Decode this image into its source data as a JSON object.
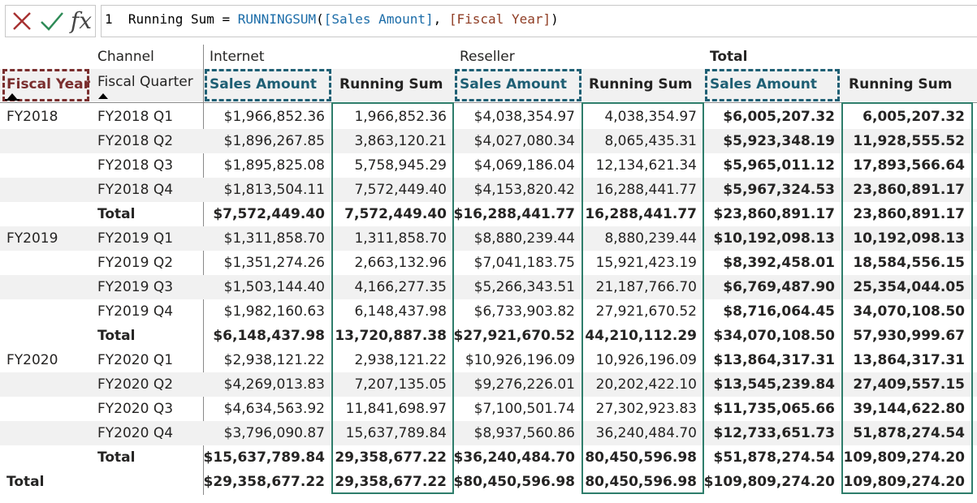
{
  "formula": {
    "line_number": "1",
    "measure_name": "Running Sum",
    "equals": " = ",
    "function": "RUNNINGSUM",
    "open_paren": "(",
    "arg1": "[Sales Amount]",
    "comma": ", ",
    "arg2": "[Fiscal Year]",
    "close_paren": ")",
    "icons": [
      "cancel-x-icon",
      "commit-check-icon",
      "fx-icon"
    ],
    "colors": {
      "cancel": "#a83232",
      "commit": "#2e8b57",
      "function": "#1b6ca8",
      "column_ref": "#1b6ca8",
      "column_ref_alt": "#8f3d24"
    }
  },
  "matrix": {
    "row_header_label": "Channel",
    "fiscal_year_header": "Fiscal Year",
    "fiscal_quarter_header": "Fiscal Quarter",
    "channels": [
      "Internet",
      "Reseller",
      "Total"
    ],
    "value_headers": [
      "Sales Amount",
      "Running Sum",
      "Sales Amount",
      "Running Sum",
      "Sales Amount",
      "Running Sum"
    ],
    "rows": [
      {
        "year": "FY2018",
        "quarter": "FY2018 Q1",
        "values": [
          "$1,966,852.36",
          "1,966,852.36",
          "$4,038,354.97",
          "4,038,354.97",
          "$6,005,207.32",
          "6,005,207.32"
        ]
      },
      {
        "year": "",
        "quarter": "FY2018 Q2",
        "values": [
          "$1,896,267.85",
          "3,863,120.21",
          "$4,027,080.34",
          "8,065,435.31",
          "$5,923,348.19",
          "11,928,555.52"
        ]
      },
      {
        "year": "",
        "quarter": "FY2018 Q3",
        "values": [
          "$1,895,825.08",
          "5,758,945.29",
          "$4,069,186.04",
          "12,134,621.34",
          "$5,965,011.12",
          "17,893,566.64"
        ]
      },
      {
        "year": "",
        "quarter": "FY2018 Q4",
        "values": [
          "$1,813,504.11",
          "7,572,449.40",
          "$4,153,820.42",
          "16,288,441.77",
          "$5,967,324.53",
          "23,860,891.17"
        ]
      },
      {
        "year": "",
        "quarter": "Total",
        "values": [
          "$7,572,449.40",
          "7,572,449.40",
          "$16,288,441.77",
          "16,288,441.77",
          "$23,860,891.17",
          "23,860,891.17"
        ]
      },
      {
        "year": "FY2019",
        "quarter": "FY2019 Q1",
        "values": [
          "$1,311,858.70",
          "1,311,858.70",
          "$8,880,239.44",
          "8,880,239.44",
          "$10,192,098.13",
          "10,192,098.13"
        ]
      },
      {
        "year": "",
        "quarter": "FY2019 Q2",
        "values": [
          "$1,351,274.26",
          "2,663,132.96",
          "$7,041,183.75",
          "15,921,423.19",
          "$8,392,458.01",
          "18,584,556.15"
        ]
      },
      {
        "year": "",
        "quarter": "FY2019 Q3",
        "values": [
          "$1,503,144.40",
          "4,166,277.35",
          "$5,266,343.51",
          "21,187,766.70",
          "$6,769,487.90",
          "25,354,044.05"
        ]
      },
      {
        "year": "",
        "quarter": "FY2019 Q4",
        "values": [
          "$1,982,160.63",
          "6,148,437.98",
          "$6,733,903.82",
          "27,921,670.52",
          "$8,716,064.45",
          "34,070,108.50"
        ]
      },
      {
        "year": "",
        "quarter": "Total",
        "values": [
          "$6,148,437.98",
          "13,720,887.38",
          "$27,921,670.52",
          "44,210,112.29",
          "$34,070,108.50",
          "57,930,999.67"
        ]
      },
      {
        "year": "FY2020",
        "quarter": "FY2020 Q1",
        "values": [
          "$2,938,121.22",
          "2,938,121.22",
          "$10,926,196.09",
          "10,926,196.09",
          "$13,864,317.31",
          "13,864,317.31"
        ]
      },
      {
        "year": "",
        "quarter": "FY2020 Q2",
        "values": [
          "$4,269,013.83",
          "7,207,135.05",
          "$9,276,226.01",
          "20,202,422.10",
          "$13,545,239.84",
          "27,409,557.15"
        ]
      },
      {
        "year": "",
        "quarter": "FY2020 Q3",
        "values": [
          "$4,634,563.92",
          "11,841,698.97",
          "$7,100,501.74",
          "27,302,923.83",
          "$11,735,065.66",
          "39,144,622.80"
        ]
      },
      {
        "year": "",
        "quarter": "FY2020 Q4",
        "values": [
          "$3,796,090.87",
          "15,637,789.84",
          "$8,937,560.86",
          "36,240,484.70",
          "$12,733,651.73",
          "51,878,274.54"
        ]
      },
      {
        "year": "",
        "quarter": "Total",
        "values": [
          "$15,637,789.84",
          "29,358,677.22",
          "$36,240,484.70",
          "80,450,596.98",
          "$51,878,274.54",
          "109,809,274.20"
        ]
      },
      {
        "year": "Total",
        "quarter": "",
        "values": [
          "$29,358,677.22",
          "29,358,677.22",
          "$80,450,596.98",
          "80,450,596.98",
          "$109,809,274.20",
          "109,809,274.20"
        ]
      }
    ],
    "colors": {
      "header_blue": "#1e5f74",
      "header_red": "#7a2e2e",
      "running_sum_border": "#2e7d6b",
      "row_shade": "#f1f1f1"
    }
  }
}
